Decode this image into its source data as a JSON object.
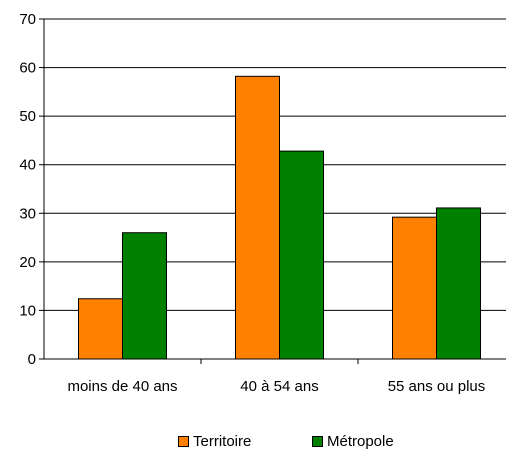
{
  "chart_data": {
    "type": "bar",
    "categories": [
      "moins de 40 ans",
      "40 à 54 ans",
      "55 ans ou plus"
    ],
    "series": [
      {
        "name": "Territoire",
        "values": [
          12.4,
          58.2,
          29.2
        ],
        "color": "#ff8000"
      },
      {
        "name": "Métropole",
        "values": [
          26.0,
          42.8,
          31.1
        ],
        "color": "#008000"
      }
    ],
    "ylim": [
      0,
      70
    ],
    "yticks": [
      0,
      10,
      20,
      30,
      40,
      50,
      60,
      70
    ],
    "grid": true,
    "legend_position": "bottom"
  }
}
